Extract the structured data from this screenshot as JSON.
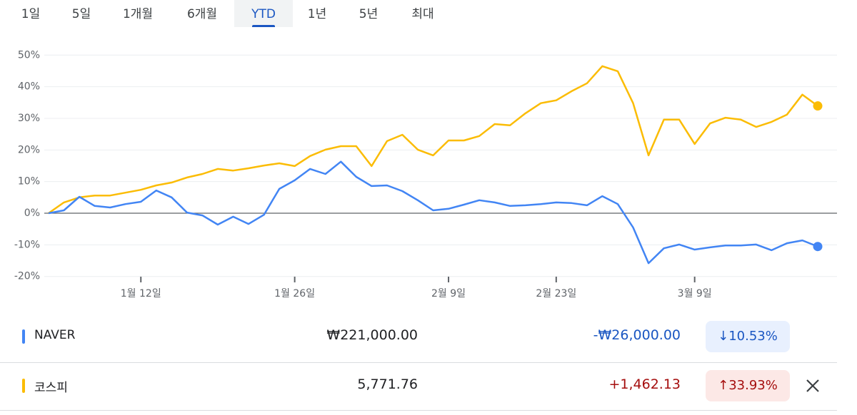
{
  "tabs": [
    "1일",
    "5일",
    "1개월",
    "6개월",
    "YTD",
    "1년",
    "5년",
    "최대"
  ],
  "chart_data": {
    "type": "line",
    "categories": [
      null,
      null,
      null,
      null,
      null,
      null,
      "1월 12일",
      null,
      null,
      null,
      null,
      null,
      null,
      null,
      null,
      null,
      "1월 26일",
      null,
      null,
      null,
      null,
      null,
      null,
      null,
      null,
      null,
      "2월 9일",
      null,
      null,
      null,
      null,
      null,
      null,
      "2월 23일",
      null,
      null,
      null,
      null,
      null,
      null,
      null,
      null,
      "3월 9일",
      null,
      null,
      null,
      null,
      null,
      null,
      null,
      null
    ],
    "series": [
      {
        "name": "NAVER",
        "color": "#4285f4",
        "values": [
          0,
          0.9,
          5.2,
          2.3,
          1.8,
          2.9,
          3.6,
          7.2,
          5.0,
          0.2,
          -0.7,
          -3.6,
          -1.1,
          -3.4,
          -0.5,
          7.7,
          10.4,
          14.0,
          12.4,
          16.3,
          11.5,
          8.6,
          8.8,
          7.0,
          4.1,
          0.9,
          1.4,
          2.7,
          4.1,
          3.4,
          2.3,
          2.5,
          2.9,
          3.4,
          3.2,
          2.5,
          5.4,
          2.9,
          -4.5,
          -15.8,
          -11.1,
          -9.9,
          -11.5,
          -10.8,
          -10.2,
          -10.2,
          -9.9,
          -11.7,
          -9.5,
          -8.6,
          -10.53
        ]
      },
      {
        "name": "코스피",
        "color": "#fbbc04",
        "values": [
          0,
          3.4,
          5.0,
          5.6,
          5.6,
          6.5,
          7.4,
          8.8,
          9.7,
          11.3,
          12.4,
          14.0,
          13.5,
          14.2,
          15.1,
          15.8,
          14.9,
          18.1,
          20.1,
          21.2,
          21.2,
          14.9,
          22.8,
          24.8,
          20.1,
          18.3,
          23.0,
          23.0,
          24.4,
          28.2,
          27.8,
          31.6,
          34.8,
          35.7,
          38.6,
          41.1,
          46.5,
          44.9,
          34.8,
          18.3,
          29.6,
          29.6,
          21.9,
          28.4,
          30.2,
          29.6,
          27.3,
          28.9,
          31.2,
          37.5,
          33.93
        ]
      }
    ],
    "ylim": [
      -23,
      53
    ],
    "yticks": [
      {
        "value": 50,
        "label": "50%"
      },
      {
        "value": 40,
        "label": "40%"
      },
      {
        "value": 30,
        "label": "30%"
      },
      {
        "value": 20,
        "label": "20%"
      },
      {
        "value": 10,
        "label": "10%"
      },
      {
        "value": 0,
        "label": "0%"
      },
      {
        "value": -10,
        "label": "-10%"
      },
      {
        "value": -20,
        "label": "-20%"
      }
    ],
    "grid": true
  },
  "rows": [
    {
      "price": "₩221,000.00",
      "change": "-₩26,000.00",
      "percent": "↓10.53%",
      "direction": "down"
    },
    {
      "price": "5,771.76",
      "change": "+1,462.13",
      "percent": "↑33.93%",
      "direction": "up"
    }
  ]
}
